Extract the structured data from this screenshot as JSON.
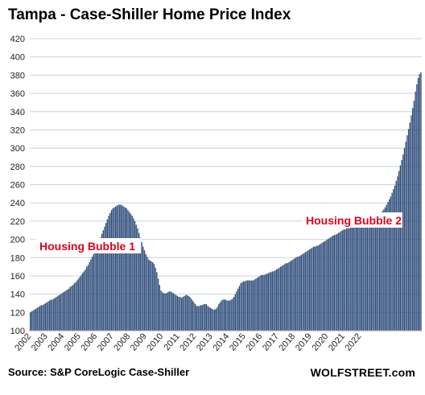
{
  "chart_data": {
    "type": "bar",
    "title": "Tampa - Case-Shiller Home Price Index",
    "source": "Source: S&P CoreLogic Case-Shiller",
    "brand": "WOLFSTREET.com",
    "ylim": [
      100,
      420
    ],
    "yticks": [
      100,
      120,
      140,
      160,
      180,
      200,
      220,
      240,
      260,
      280,
      300,
      320,
      340,
      360,
      380,
      400,
      420
    ],
    "xticks": [
      "2002",
      "2003",
      "2004",
      "2005",
      "2006",
      "2007",
      "2008",
      "2009",
      "2010",
      "2011",
      "2012",
      "2013",
      "2014",
      "2015",
      "2016",
      "2017",
      "2018",
      "2019",
      "2020",
      "2021",
      "2022"
    ],
    "grid": true,
    "bar_color": "#2e4d7b",
    "annotations": [
      {
        "text": "Housing Bubble 1",
        "color": "#e0001b"
      },
      {
        "text": "Housing Bubble 2",
        "color": "#e0001b"
      }
    ],
    "series": [
      {
        "frequency": "monthly",
        "start": "2002-01",
        "values": [
          120,
          121,
          122,
          123,
          124,
          125,
          126,
          127,
          128,
          128,
          129,
          130,
          131,
          132,
          133,
          134,
          134,
          135,
          136,
          137,
          138,
          139,
          140,
          141,
          142,
          143,
          144,
          145,
          146,
          148,
          149,
          150,
          152,
          153,
          155,
          157,
          159,
          161,
          163,
          165,
          167,
          170,
          172,
          175,
          178,
          181,
          184,
          187,
          190,
          194,
          198,
          202,
          206,
          210,
          214,
          218,
          222,
          226,
          229,
          232,
          234,
          235,
          236,
          237,
          238,
          238,
          238,
          237,
          236,
          235,
          234,
          232,
          230,
          228,
          226,
          223,
          220,
          216,
          212,
          207,
          202,
          197,
          192,
          188,
          184,
          181,
          178,
          177,
          176,
          175,
          173,
          169,
          164,
          157,
          150,
          144,
          142,
          141,
          141,
          141,
          142,
          143,
          143,
          142,
          141,
          140,
          139,
          138,
          137,
          137,
          136,
          137,
          138,
          139,
          139,
          138,
          137,
          135,
          133,
          131,
          129,
          127,
          127,
          127,
          128,
          128,
          129,
          129,
          129,
          127,
          126,
          125,
          124,
          123,
          123,
          124,
          126,
          129,
          131,
          133,
          134,
          134,
          134,
          133,
          133,
          133,
          134,
          135,
          137,
          140,
          143,
          146,
          149,
          152,
          153,
          154,
          154,
          155,
          155,
          155,
          155,
          155,
          155,
          156,
          157,
          158,
          159,
          160,
          161,
          161,
          161,
          162,
          162,
          163,
          164,
          164,
          165,
          165,
          166,
          167,
          168,
          169,
          170,
          171,
          172,
          173,
          174,
          174,
          175,
          176,
          177,
          178,
          179,
          180,
          181,
          181,
          182,
          183,
          184,
          185,
          186,
          187,
          188,
          189,
          190,
          191,
          192,
          192,
          193,
          193,
          194,
          195,
          196,
          197,
          198,
          199,
          200,
          201,
          202,
          203,
          204,
          205,
          205,
          206,
          207,
          208,
          209,
          210,
          211,
          211,
          212,
          212,
          212,
          213,
          213,
          213,
          214,
          214,
          214,
          215,
          215,
          215,
          215,
          216,
          216,
          216,
          217,
          218,
          219,
          221,
          222,
          224,
          225,
          226,
          228,
          229,
          231,
          233,
          235,
          238,
          241,
          244,
          247,
          251,
          255,
          259,
          264,
          269,
          275,
          281,
          287,
          293,
          300,
          307,
          314,
          321,
          328,
          336,
          344,
          352,
          362,
          370,
          377,
          381,
          383
        ]
      }
    ]
  }
}
